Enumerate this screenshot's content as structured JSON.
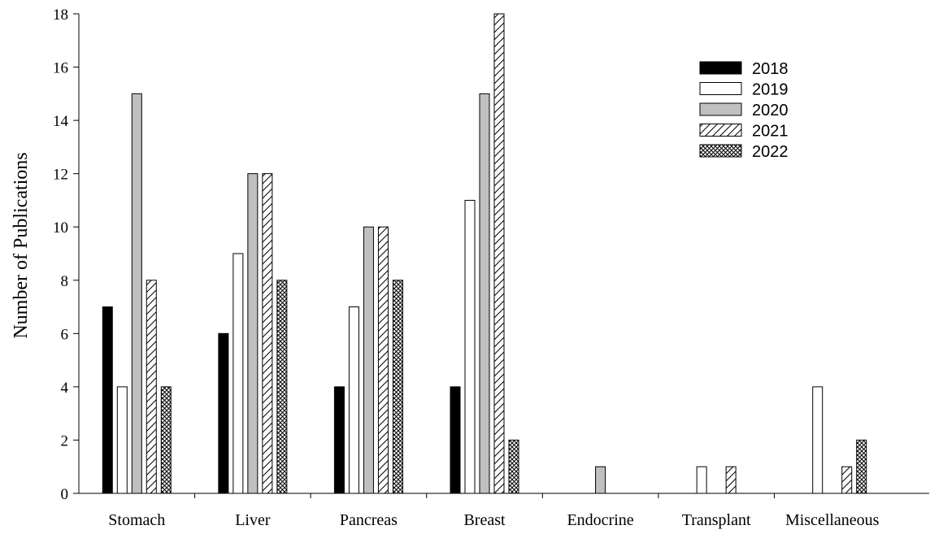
{
  "chart_data": {
    "type": "bar",
    "title": "",
    "xlabel": "",
    "ylabel": "Number of Publications",
    "ylim": [
      0,
      18
    ],
    "yticks": [
      0,
      2,
      4,
      6,
      8,
      10,
      12,
      14,
      16,
      18
    ],
    "grid": false,
    "legend_position": "top-right",
    "categories": [
      "Stomach",
      "Liver",
      "Pancreas",
      "Breast",
      "Endocrine",
      "Transplant",
      "Miscellaneous"
    ],
    "series": [
      {
        "name": "2018",
        "fill": "solid-black",
        "values": [
          7,
          6,
          4,
          4,
          0,
          0,
          0
        ]
      },
      {
        "name": "2019",
        "fill": "white",
        "values": [
          4,
          9,
          7,
          11,
          0,
          1,
          4
        ]
      },
      {
        "name": "2020",
        "fill": "gray",
        "values": [
          15,
          12,
          10,
          15,
          1,
          0,
          0
        ]
      },
      {
        "name": "2021",
        "fill": "diagonal-hatch",
        "values": [
          8,
          12,
          10,
          18,
          0,
          1,
          1
        ]
      },
      {
        "name": "2022",
        "fill": "crosshatch",
        "values": [
          4,
          8,
          8,
          2,
          0,
          0,
          2
        ]
      }
    ],
    "colors": {
      "black": "#000000",
      "white": "#ffffff",
      "gray": "#c0c0c0"
    }
  }
}
